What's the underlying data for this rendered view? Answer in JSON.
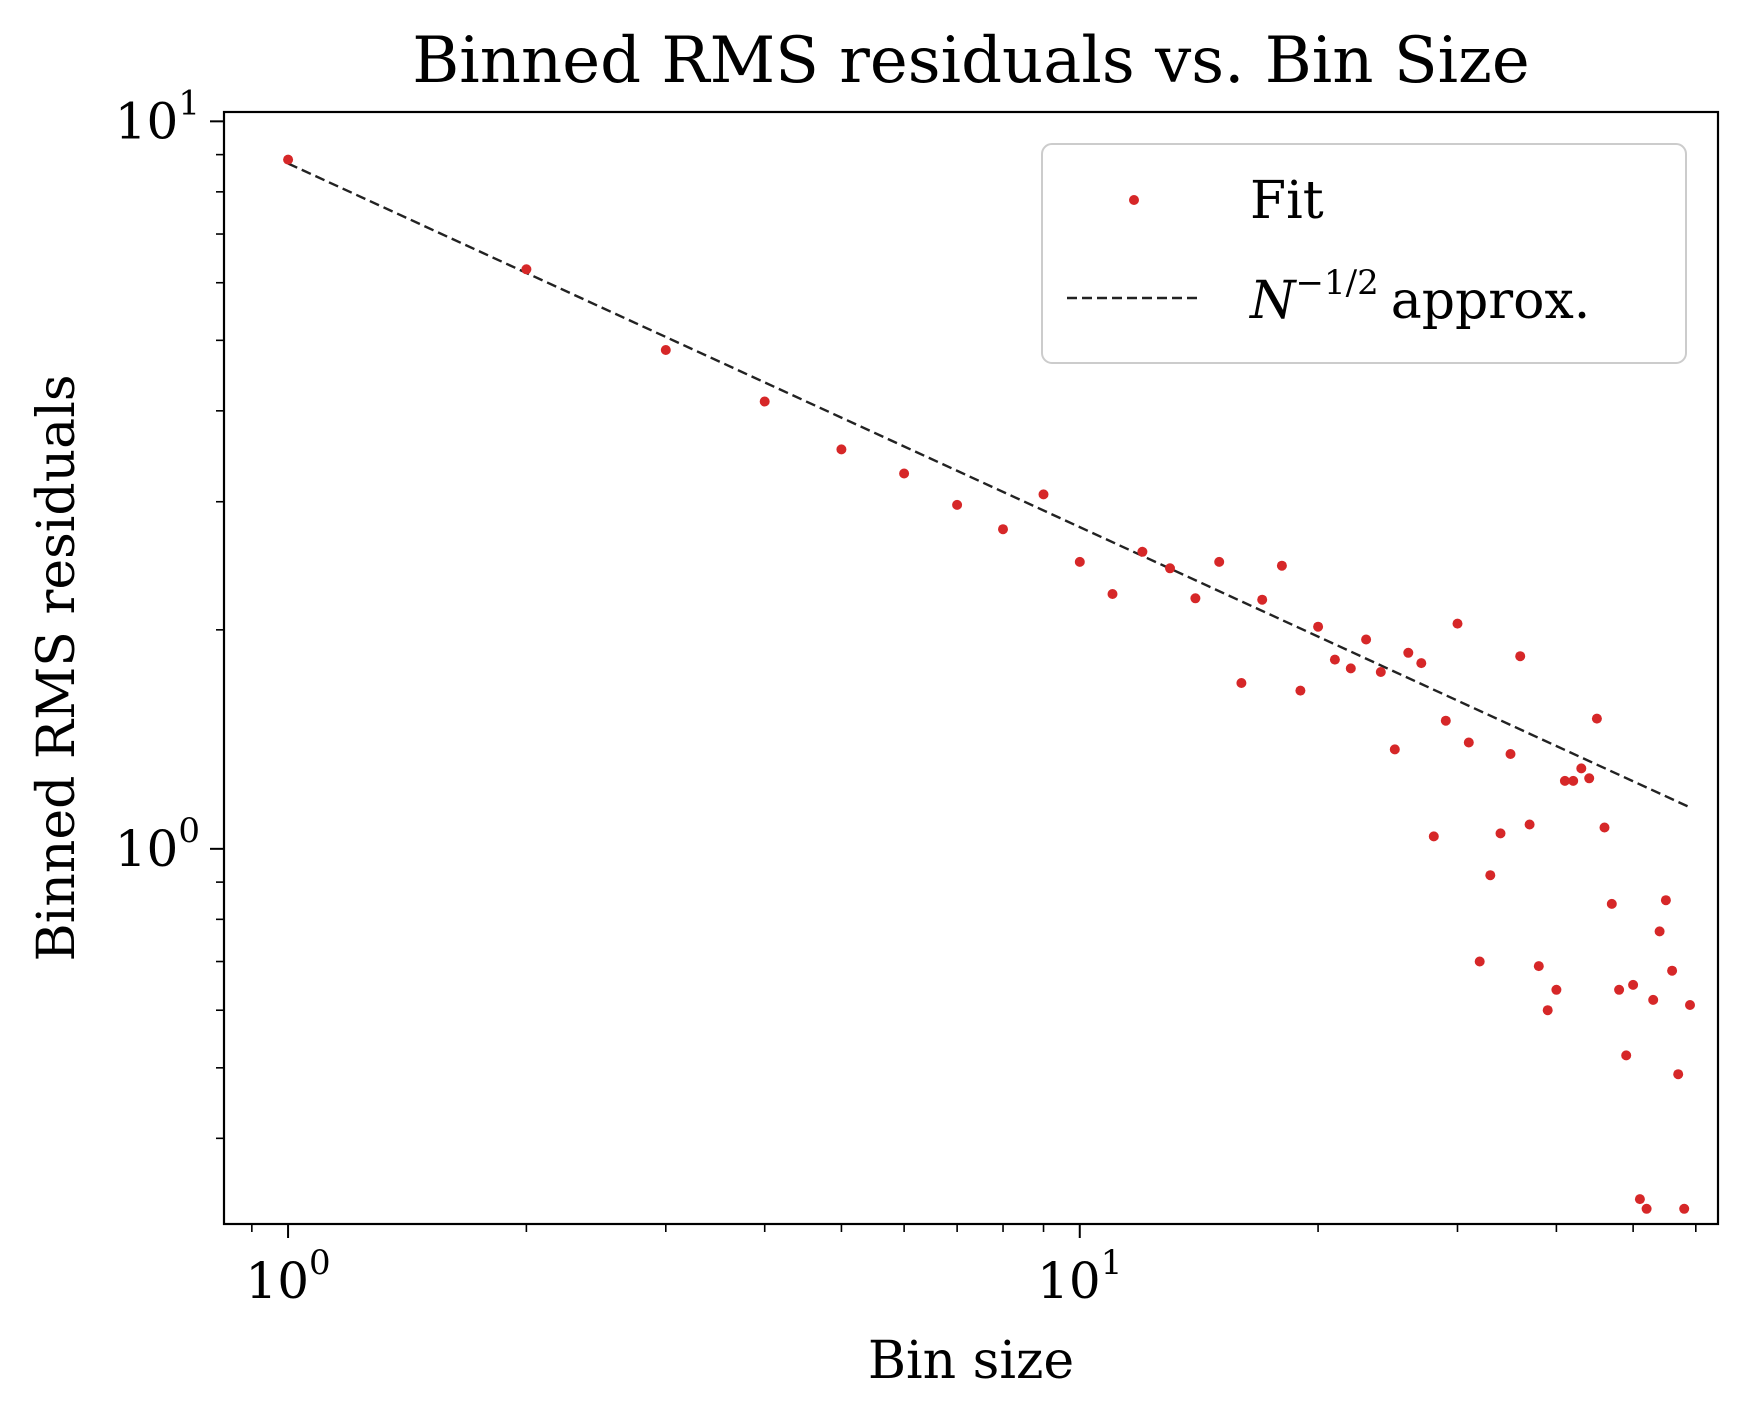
{
  "chart_data": {
    "type": "scatter",
    "title": "Binned RMS residuals vs. Bin Size",
    "xlabel": "Bin size",
    "ylabel": "Binned RMS residuals",
    "xscale": "log",
    "yscale": "log",
    "xlim": [
      0.83,
      64
    ],
    "ylim": [
      0.305,
      10.3
    ],
    "grid": false,
    "legend_position": "top-right",
    "colors": {
      "points": "#d62728",
      "line": "#222222"
    },
    "x_ticks": [
      {
        "base": "10",
        "exp": "0",
        "value": 1
      },
      {
        "base": "10",
        "exp": "1",
        "value": 10
      }
    ],
    "y_ticks": [
      {
        "base": "10",
        "exp": "0",
        "value": 1
      },
      {
        "base": "10",
        "exp": "1",
        "value": 10
      }
    ],
    "series": [
      {
        "name": "Fit",
        "kind": "scatter",
        "x": [
          1,
          2,
          3,
          4,
          5,
          6,
          7,
          8,
          9,
          10,
          11,
          12,
          13,
          14,
          15,
          16,
          17,
          18,
          19,
          20,
          21,
          22,
          23,
          24,
          25,
          26,
          27,
          28,
          29,
          30,
          31,
          32,
          33,
          34,
          35,
          36,
          37,
          38,
          39,
          40,
          41,
          42,
          43,
          44,
          45,
          46,
          47,
          48,
          49,
          50,
          51,
          52,
          53,
          54,
          55,
          56,
          57,
          58,
          59
        ],
        "y": [
          8.86,
          6.26,
          4.85,
          4.12,
          3.54,
          3.28,
          2.97,
          2.75,
          3.07,
          2.48,
          2.24,
          2.56,
          2.43,
          2.21,
          2.48,
          1.69,
          2.2,
          2.45,
          1.65,
          2.02,
          1.82,
          1.77,
          1.94,
          1.75,
          1.37,
          1.86,
          1.8,
          1.04,
          1.5,
          2.04,
          1.4,
          0.7,
          0.92,
          1.05,
          1.35,
          1.84,
          1.08,
          0.69,
          0.6,
          0.64,
          1.24,
          1.24,
          1.29,
          1.25,
          1.51,
          1.07,
          0.84,
          0.64,
          0.52,
          0.65,
          0.33,
          0.32,
          0.62,
          0.77,
          0.85,
          0.68,
          0.49,
          0.32,
          0.61
        ]
      },
      {
        "name": "approx.",
        "name_symbol": "N",
        "name_exponent": "−1/2",
        "kind": "line",
        "style": "dashed",
        "x": [
          1,
          59
        ],
        "y": [
          8.75,
          1.14
        ]
      }
    ]
  }
}
